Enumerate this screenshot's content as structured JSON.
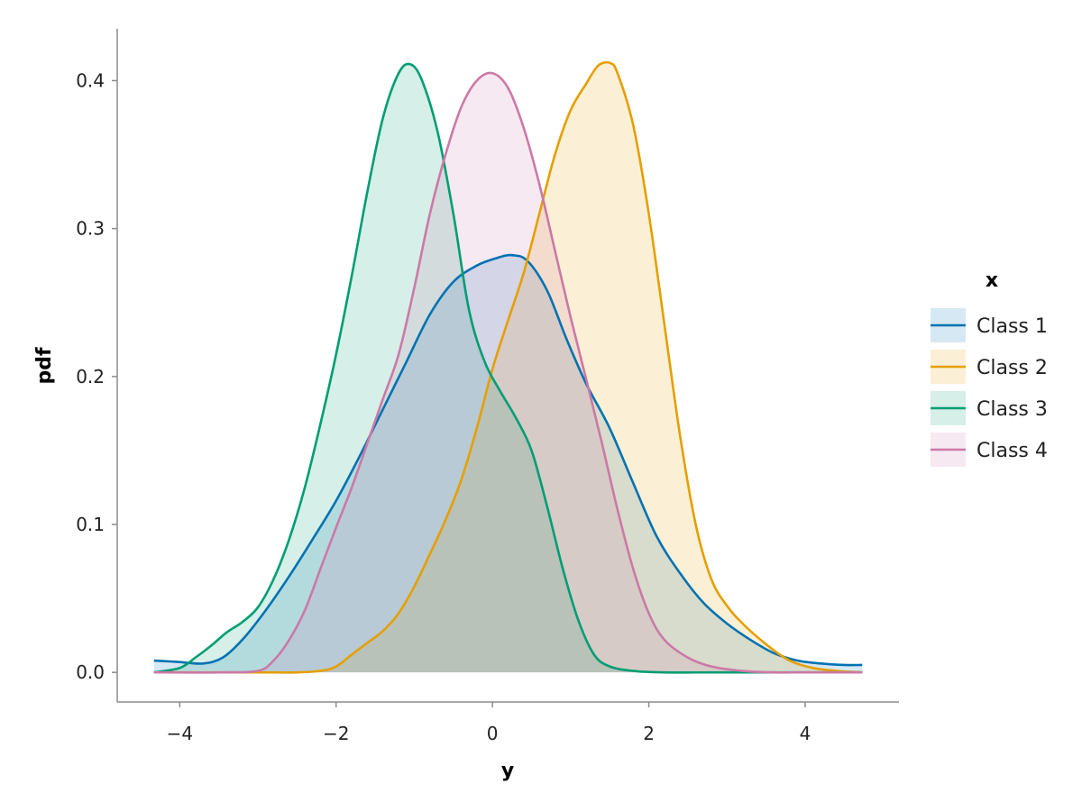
{
  "chart_data": {
    "type": "area",
    "xlabel": "y",
    "ylabel": "pdf",
    "xlim": [
      -4.8,
      5.2
    ],
    "ylim": [
      -0.02,
      0.435
    ],
    "x_ticks": [
      "−4",
      "−2",
      "0",
      "2",
      "4"
    ],
    "x_tick_values": [
      -4,
      -2,
      0,
      2,
      4
    ],
    "y_ticks": [
      "0.0",
      "0.1",
      "0.2",
      "0.3",
      "0.4"
    ],
    "y_tick_values": [
      0,
      0.1,
      0.2,
      0.3,
      0.4
    ],
    "grid": false,
    "legend": {
      "title": "x",
      "placement": "right"
    },
    "series": [
      {
        "name": "Class 1",
        "color": "#0072B2",
        "x": [
          -4.33,
          -4.0,
          -3.7,
          -3.45,
          -3.2,
          -2.9,
          -2.6,
          -2.3,
          -2.0,
          -1.7,
          -1.4,
          -1.1,
          -0.8,
          -0.5,
          -0.2,
          0.05,
          0.25,
          0.45,
          0.7,
          0.95,
          1.2,
          1.5,
          1.8,
          2.1,
          2.4,
          2.7,
          3.0,
          3.3,
          3.6,
          3.9,
          4.2,
          4.5,
          4.73
        ],
        "y": [
          0.008,
          0.007,
          0.006,
          0.01,
          0.022,
          0.042,
          0.065,
          0.09,
          0.116,
          0.146,
          0.178,
          0.21,
          0.242,
          0.264,
          0.275,
          0.28,
          0.282,
          0.278,
          0.258,
          0.225,
          0.195,
          0.165,
          0.128,
          0.092,
          0.067,
          0.047,
          0.033,
          0.022,
          0.013,
          0.008,
          0.006,
          0.005,
          0.005
        ]
      },
      {
        "name": "Class 2",
        "color": "#E69F00",
        "x": [
          -4.33,
          -3.5,
          -3.0,
          -2.5,
          -2.2,
          -2.0,
          -1.8,
          -1.6,
          -1.4,
          -1.2,
          -1.0,
          -0.8,
          -0.6,
          -0.4,
          -0.2,
          0.0,
          0.2,
          0.4,
          0.6,
          0.8,
          1.0,
          1.2,
          1.35,
          1.5,
          1.6,
          1.8,
          2.0,
          2.2,
          2.4,
          2.6,
          2.8,
          3.0,
          3.2,
          3.5,
          3.8,
          4.1,
          4.4,
          4.73
        ],
        "y": [
          0.0,
          0.0,
          0.0,
          0.0,
          0.001,
          0.004,
          0.012,
          0.02,
          0.028,
          0.04,
          0.058,
          0.08,
          0.103,
          0.13,
          0.165,
          0.205,
          0.238,
          0.27,
          0.31,
          0.35,
          0.38,
          0.398,
          0.41,
          0.412,
          0.405,
          0.37,
          0.31,
          0.235,
          0.16,
          0.1,
          0.063,
          0.045,
          0.033,
          0.019,
          0.008,
          0.003,
          0.001,
          0.0
        ]
      },
      {
        "name": "Class 3",
        "color": "#009E73",
        "x": [
          -4.33,
          -4.0,
          -3.8,
          -3.6,
          -3.4,
          -3.2,
          -3.0,
          -2.8,
          -2.6,
          -2.4,
          -2.2,
          -2.0,
          -1.8,
          -1.6,
          -1.4,
          -1.2,
          -1.05,
          -0.9,
          -0.7,
          -0.5,
          -0.3,
          -0.1,
          0.1,
          0.3,
          0.5,
          0.7,
          0.9,
          1.1,
          1.3,
          1.5,
          1.8,
          2.2,
          3.0,
          4.73
        ],
        "y": [
          0.0,
          0.003,
          0.01,
          0.018,
          0.027,
          0.034,
          0.044,
          0.063,
          0.09,
          0.125,
          0.168,
          0.215,
          0.268,
          0.325,
          0.375,
          0.405,
          0.411,
          0.4,
          0.365,
          0.31,
          0.245,
          0.21,
          0.19,
          0.172,
          0.15,
          0.112,
          0.07,
          0.035,
          0.012,
          0.004,
          0.001,
          0.0,
          0.0,
          0.0
        ]
      },
      {
        "name": "Class 4",
        "color": "#CC79A7",
        "x": [
          -4.33,
          -3.5,
          -3.0,
          -2.8,
          -2.6,
          -2.4,
          -2.2,
          -2.0,
          -1.8,
          -1.6,
          -1.4,
          -1.2,
          -1.0,
          -0.8,
          -0.6,
          -0.4,
          -0.2,
          0.0,
          0.2,
          0.4,
          0.6,
          0.8,
          1.0,
          1.2,
          1.4,
          1.6,
          1.8,
          2.0,
          2.2,
          2.5,
          2.8,
          3.2,
          3.6,
          4.0,
          4.73
        ],
        "y": [
          0.0,
          0.0,
          0.001,
          0.008,
          0.022,
          0.042,
          0.07,
          0.098,
          0.125,
          0.155,
          0.185,
          0.215,
          0.26,
          0.31,
          0.35,
          0.382,
          0.4,
          0.405,
          0.395,
          0.368,
          0.33,
          0.285,
          0.24,
          0.198,
          0.155,
          0.11,
          0.07,
          0.04,
          0.022,
          0.01,
          0.004,
          0.001,
          0.0,
          0.0,
          0.0
        ]
      }
    ]
  }
}
